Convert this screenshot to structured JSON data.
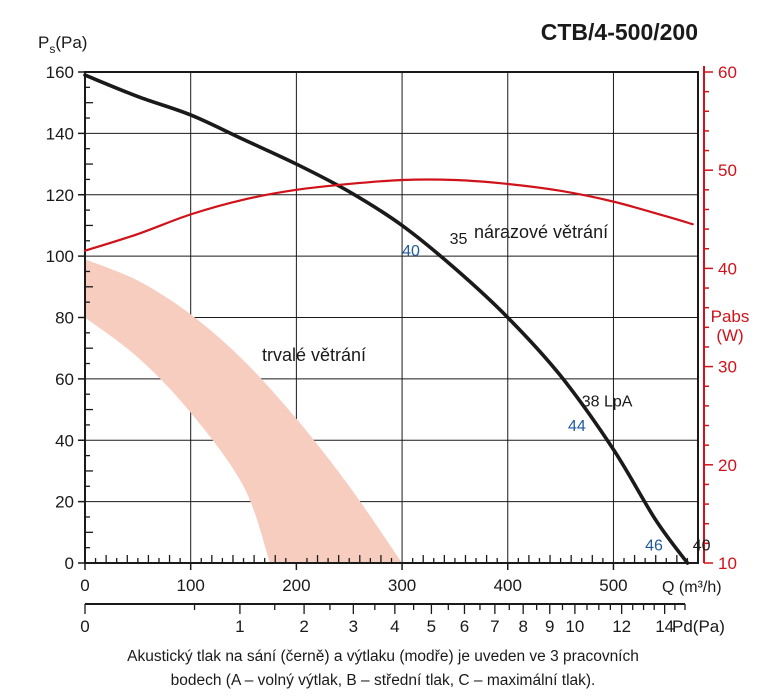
{
  "chart_data": {
    "type": "line",
    "title": "CTB/4-500/200",
    "x_axis": {
      "unit_label": "Q (m³/h)",
      "range": [
        0,
        580
      ],
      "ticks": [
        0,
        100,
        200,
        300,
        400,
        500
      ],
      "tick_labels": [
        "0",
        "100",
        "200",
        "300",
        "400",
        "500"
      ],
      "minor_step": 20,
      "micro_step": 10
    },
    "y_axis_left": {
      "label_main": "P",
      "label_sub": "s",
      "label_rest": "(Pa)",
      "range": [
        0,
        160
      ],
      "ticks": [
        0,
        20,
        40,
        60,
        80,
        100,
        120,
        140,
        160
      ],
      "tick_labels": [
        "0",
        "20",
        "40",
        "60",
        "80",
        "100",
        "120",
        "140",
        "160"
      ],
      "minor_step": 5
    },
    "y_axis_right": {
      "label": "Pabs",
      "unit": "(W)",
      "color": "#d0121a",
      "range": [
        10,
        60
      ],
      "ticks": [
        10,
        20,
        30,
        40,
        50,
        60
      ],
      "tick_labels": [
        "10",
        "20",
        "30",
        "40",
        "50",
        "60"
      ]
    },
    "secondary_x_axis": {
      "label": "Pd(Pa)",
      "ticks": [
        0,
        1,
        2,
        3,
        4,
        5,
        6,
        7,
        8,
        9,
        10,
        12,
        14
      ],
      "tick_labels": [
        "0",
        "1",
        "2",
        "3",
        "4",
        "5",
        "6",
        "7",
        "8",
        "9",
        "10",
        "12",
        "14"
      ],
      "max": 15
    },
    "grid": true,
    "series": [
      {
        "label": "nárazové větrání",
        "kind": "pressure",
        "color": "#1a1a1a",
        "x": [
          0,
          50,
          100,
          150,
          200,
          250,
          300,
          350,
          400,
          450,
          500,
          540,
          570
        ],
        "y": [
          159,
          152,
          146,
          138,
          130,
          121,
          110,
          96,
          80,
          61,
          37,
          14,
          0
        ]
      },
      {
        "label": "",
        "kind": "power",
        "color": "#d0121a",
        "x": [
          0,
          50,
          100,
          150,
          200,
          250,
          300,
          350,
          400,
          450,
          500,
          550,
          575
        ],
        "y": [
          41.8,
          43.5,
          45.5,
          47,
          48,
          48.6,
          49,
          49,
          48.6,
          47.9,
          46.8,
          45.3,
          44.5
        ]
      }
    ],
    "band": {
      "label": "trvalé větrání",
      "color": "#f6cdbf",
      "upper_x": [
        0,
        50,
        100,
        150,
        200,
        250,
        300
      ],
      "upper_y": [
        99,
        92,
        81,
        66,
        47,
        25,
        0
      ],
      "lower_x": [
        0,
        50,
        100,
        150,
        175
      ],
      "lower_y": [
        80,
        67,
        49,
        25,
        0
      ]
    },
    "annotations": [
      {
        "text": "35",
        "x": 345,
        "y": 104,
        "color": "#1a1a1a"
      },
      {
        "text": "40",
        "x": 300,
        "y": 100,
        "color": "#1f5aa0"
      },
      {
        "text": "38 LpA",
        "x": 470,
        "y": 51,
        "color": "#1a1a1a"
      },
      {
        "text": "44",
        "x": 457,
        "y": 43,
        "color": "#1f5aa0"
      },
      {
        "text": "46",
        "x": 530,
        "y": 4,
        "color": "#1f5aa0"
      },
      {
        "text": "40",
        "x": 575,
        "y": 4,
        "color": "#1a1a1a"
      }
    ]
  },
  "caption": {
    "line1": "Akustický tlak na sání (černě) a výtlaku (modře) je uveden ve 3 pracovních",
    "line2": "bodech (A – volný výtlak, B – střední tlak, C – maximální tlak)."
  }
}
